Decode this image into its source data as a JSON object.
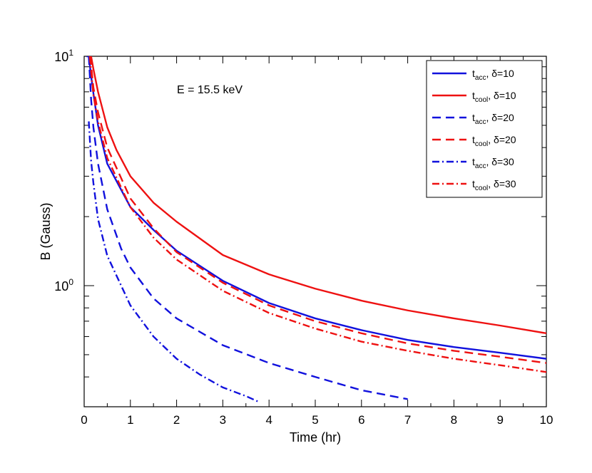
{
  "chart_data": {
    "type": "line",
    "xlabel": "Time (hr)",
    "ylabel": "B (Gauss)",
    "annotation": "E = 15.5 keV",
    "xlim": [
      0,
      10
    ],
    "ylim": [
      0.31,
      10
    ],
    "yscale": "log",
    "x_ticks": [
      0,
      1,
      2,
      3,
      4,
      5,
      6,
      7,
      8,
      9,
      10
    ],
    "x_tick_labels": [
      "0",
      "1",
      "2",
      "3",
      "4",
      "5",
      "6",
      "7",
      "8",
      "9",
      "10"
    ],
    "y_major_ticks": [
      {
        "base": "10",
        "exp": "0"
      },
      {
        "base": "10",
        "exp": "1"
      }
    ],
    "legend_position": "top-right",
    "colors": {
      "blue": "#1111dd",
      "red": "#ee1111"
    },
    "series": [
      {
        "name": "t_acc, δ=10",
        "label_main": "t",
        "label_sub": "acc",
        "label_rest": ", δ=10",
        "color": "blue",
        "dash": "solid",
        "x": [
          0.05,
          0.1,
          0.15,
          0.2,
          0.3,
          0.5,
          1.0,
          1.5,
          2,
          3,
          4,
          5,
          6,
          7,
          8,
          9,
          10
        ],
        "y": [
          10,
          10,
          8.2,
          6.9,
          5.0,
          3.4,
          2.2,
          1.75,
          1.42,
          1.05,
          0.84,
          0.72,
          0.64,
          0.58,
          0.54,
          0.51,
          0.48
        ]
      },
      {
        "name": "t_cool, δ=10",
        "label_main": "t",
        "label_sub": "cool",
        "label_rest": ", δ=10",
        "color": "red",
        "dash": "solid",
        "x": [
          0.15,
          0.2,
          0.3,
          0.5,
          0.7,
          1.0,
          1.5,
          2,
          3,
          4,
          5,
          6,
          7,
          8,
          9,
          10
        ],
        "y": [
          10,
          8.8,
          7.0,
          4.9,
          3.9,
          3.0,
          2.3,
          1.9,
          1.36,
          1.12,
          0.97,
          0.86,
          0.78,
          0.72,
          0.67,
          0.62
        ]
      },
      {
        "name": "t_acc, δ=20",
        "label_main": "t",
        "label_sub": "acc",
        "label_rest": ", δ=20",
        "color": "blue",
        "dash": "dash",
        "x": [
          0.1,
          0.15,
          0.2,
          0.3,
          0.5,
          0.8,
          1.0,
          1.5,
          2,
          3,
          4,
          5,
          6,
          7
        ],
        "y": [
          10,
          6.5,
          4.9,
          3.4,
          2.15,
          1.45,
          1.2,
          0.88,
          0.72,
          0.55,
          0.46,
          0.4,
          0.35,
          0.32
        ]
      },
      {
        "name": "t_cool, δ=20",
        "label_main": "t",
        "label_sub": "cool",
        "label_rest": ", δ=20",
        "color": "red",
        "dash": "dash",
        "x": [
          0.13,
          0.2,
          0.3,
          0.5,
          1.0,
          1.5,
          2,
          3,
          4,
          5,
          6,
          7,
          8,
          9,
          10
        ],
        "y": [
          10,
          7.3,
          5.7,
          4.0,
          2.4,
          1.78,
          1.4,
          1.03,
          0.82,
          0.7,
          0.62,
          0.56,
          0.52,
          0.49,
          0.46
        ]
      },
      {
        "name": "t_acc, δ=30",
        "label_main": "t",
        "label_sub": "acc",
        "label_rest": ", δ=30",
        "color": "blue",
        "dash": "dashdot",
        "x": [
          0.1,
          0.15,
          0.2,
          0.3,
          0.5,
          1.0,
          1.5,
          2,
          2.5,
          3,
          3.5,
          3.8
        ],
        "y": [
          5.2,
          3.5,
          2.8,
          1.95,
          1.35,
          0.82,
          0.6,
          0.48,
          0.41,
          0.36,
          0.33,
          0.31
        ]
      },
      {
        "name": "t_cool, δ=30",
        "label_main": "t",
        "label_sub": "cool",
        "label_rest": ", δ=30",
        "color": "red",
        "dash": "dashdot",
        "x": [
          0.12,
          0.2,
          0.3,
          0.5,
          1.0,
          1.5,
          2,
          3,
          4,
          5,
          6,
          7,
          8,
          9,
          10
        ],
        "y": [
          10,
          6.8,
          5.2,
          3.6,
          2.2,
          1.62,
          1.3,
          0.95,
          0.76,
          0.65,
          0.57,
          0.52,
          0.48,
          0.45,
          0.42
        ]
      }
    ]
  }
}
